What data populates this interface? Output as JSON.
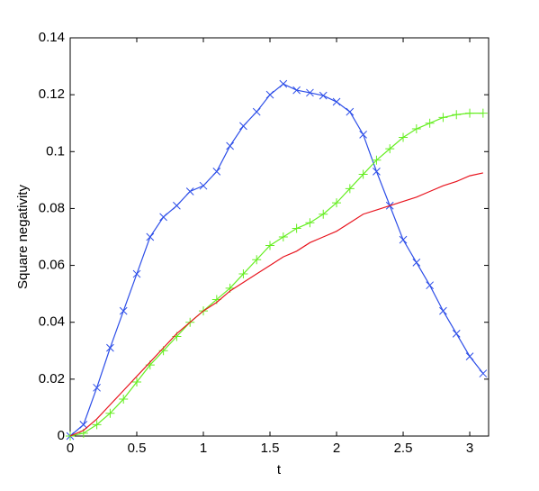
{
  "chart_data": {
    "type": "line",
    "xlabel": "t",
    "ylabel": "Square negativity",
    "x": [
      0,
      0.1,
      0.2,
      0.3,
      0.4,
      0.5,
      0.6,
      0.7,
      0.8,
      0.9,
      1.0,
      1.1,
      1.2,
      1.3,
      1.4,
      1.5,
      1.6,
      1.7,
      1.8,
      1.9,
      2.0,
      2.1,
      2.2,
      2.3,
      2.4,
      2.5,
      2.6,
      2.7,
      2.8,
      2.9,
      3.0,
      3.1
    ],
    "series": [
      {
        "color": "#2d4ee8",
        "marker": "x",
        "values": [
          0,
          0.004,
          0.017,
          0.031,
          0.044,
          0.057,
          0.07,
          0.077,
          0.081,
          0.086,
          0.088,
          0.093,
          0.102,
          0.109,
          0.114,
          0.12,
          0.1238,
          0.1216,
          0.1207,
          0.1197,
          0.1175,
          0.114,
          0.106,
          0.093,
          0.081,
          0.069,
          0.061,
          0.053,
          0.044,
          0.036,
          0.028,
          0.022
        ]
      },
      {
        "color": "#66ee22",
        "marker": "+",
        "values": [
          0,
          0.001,
          0.004,
          0.008,
          0.013,
          0.019,
          0.025,
          0.03,
          0.035,
          0.04,
          0.044,
          0.048,
          0.052,
          0.057,
          0.062,
          0.067,
          0.07,
          0.073,
          0.075,
          0.078,
          0.082,
          0.087,
          0.092,
          0.097,
          0.101,
          0.105,
          0.108,
          0.11,
          0.112,
          0.113,
          0.1135,
          0.1135
        ]
      },
      {
        "color": "#e8141e",
        "marker": null,
        "values": [
          0,
          0.002,
          0.006,
          0.011,
          0.016,
          0.021,
          0.026,
          0.031,
          0.036,
          0.04,
          0.044,
          0.047,
          0.051,
          0.054,
          0.057,
          0.06,
          0.063,
          0.065,
          0.068,
          0.07,
          0.072,
          0.075,
          0.078,
          0.0795,
          0.081,
          0.0825,
          0.084,
          0.086,
          0.088,
          0.0895,
          0.0915,
          0.0925
        ]
      }
    ],
    "xlim": [
      0,
      3.1416
    ],
    "xticks": [
      0,
      0.5,
      1,
      1.5,
      2,
      2.5,
      3
    ],
    "ylim": [
      0,
      0.14
    ],
    "yticks": [
      0,
      0.02,
      0.04,
      0.06,
      0.08,
      0.1,
      0.12,
      0.14
    ],
    "grid": false
  }
}
